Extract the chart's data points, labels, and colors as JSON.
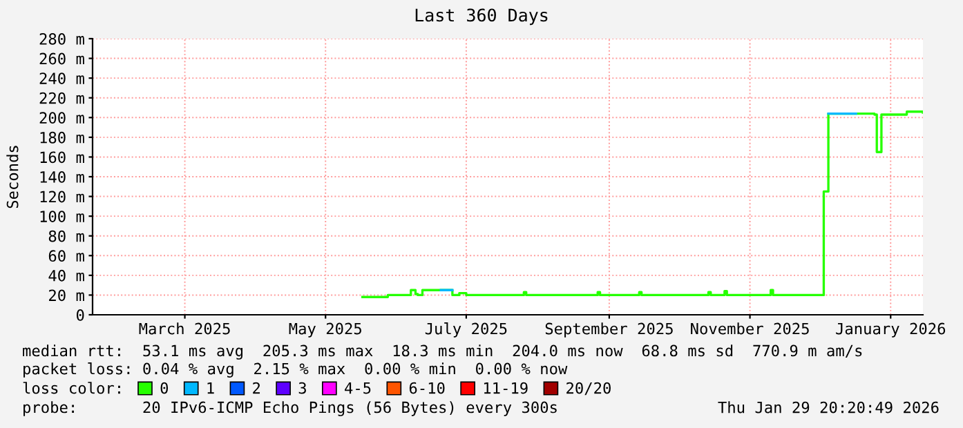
{
  "chart_data": {
    "type": "step",
    "title": "Last 360 Days",
    "ylabel": "Seconds",
    "legend_title": "loss color:",
    "xlim": [
      "2025-02-03",
      "2026-01-29"
    ],
    "xticks": [
      {
        "value": "2025-03-15",
        "label": "March 2025"
      },
      {
        "value": "2025-05-15",
        "label": "May 2025"
      },
      {
        "value": "2025-07-15",
        "label": "July 2025"
      },
      {
        "value": "2025-09-15",
        "label": "September 2025"
      },
      {
        "value": "2025-11-15",
        "label": "November 2025"
      },
      {
        "value": "2026-01-15",
        "label": "January 2026"
      }
    ],
    "ylim": [
      0,
      280
    ],
    "yticks": [
      0,
      {
        "value": 20,
        "label": "20 m"
      },
      {
        "value": 40,
        "label": "40 m"
      },
      {
        "value": 60,
        "label": "60 m"
      },
      {
        "value": 80,
        "label": "80 m"
      },
      {
        "value": 100,
        "label": "100 m"
      },
      {
        "value": 120,
        "label": "120 m"
      },
      {
        "value": 140,
        "label": "140 m"
      },
      {
        "value": 160,
        "label": "160 m"
      },
      {
        "value": 180,
        "label": "180 m"
      },
      {
        "value": 200,
        "label": "200 m"
      },
      {
        "value": 220,
        "label": "220 m"
      },
      {
        "value": 240,
        "label": "240 m"
      },
      {
        "value": 260,
        "label": "260 m"
      },
      {
        "value": 280,
        "label": "280 m"
      }
    ],
    "grid": true,
    "legend": "bottom",
    "series": [
      {
        "name": "0",
        "color": "#26ff00",
        "x": [
          "2025-05-31",
          "2025-06-09",
          "2025-06-11",
          "2025-06-20",
          "2025-06-21",
          "2025-06-23",
          "2025-06-24",
          "2025-06-26",
          "2025-07-08",
          "2025-07-09",
          "2025-07-12",
          "2025-07-15",
          "2025-08-08",
          "2025-08-09",
          "2025-08-10",
          "2025-09-09",
          "2025-09-10",
          "2025-09-11",
          "2025-09-27",
          "2025-09-28",
          "2025-09-29",
          "2025-10-27",
          "2025-10-28",
          "2025-10-29",
          "2025-11-03",
          "2025-11-04",
          "2025-11-05",
          "2025-11-23",
          "2025-11-24",
          "2025-11-25",
          "2025-12-16",
          "2025-12-17",
          "2025-12-18",
          "2025-12-19",
          "2026-01-08",
          "2026-01-09",
          "2026-01-10",
          "2026-01-11",
          "2026-01-21",
          "2026-01-22",
          "2026-01-29"
        ],
        "values": [
          18,
          18,
          20,
          20,
          25,
          21,
          20,
          25,
          25,
          20,
          22,
          20,
          20,
          23,
          20,
          20,
          23,
          20,
          20,
          23,
          20,
          20,
          23,
          20,
          20,
          24,
          20,
          20,
          25,
          20,
          20,
          125,
          125,
          204,
          203,
          165,
          165,
          203,
          203,
          206,
          205
        ]
      },
      {
        "name": "1",
        "color": "#00b8ff",
        "x": [
          "2025-07-04",
          "2025-07-08",
          "2025-07-09",
          "2025-12-19",
          "2025-12-31"
        ],
        "values": [
          25,
          25,
          null,
          204,
          204
        ]
      },
      {
        "name": "2",
        "color": "#0059ff"
      },
      {
        "name": "3",
        "color": "#5e00ff"
      },
      {
        "name": "4-5",
        "color": "#ff00ff"
      },
      {
        "name": "6-10",
        "color": "#ff5500"
      },
      {
        "name": "11-19",
        "color": "#ff0000"
      },
      {
        "name": "20/20",
        "color": "#a10000"
      }
    ],
    "annotations": [
      "median rtt:  53.1 ms avg  205.3 ms max  18.3 ms min  204.0 ms now  68.8 ms sd  770.9 m am/s",
      "packet loss: 0.04 % avg  2.15 % max  0.00 % min  0.00 % now",
      "probe:       20 IPv6-ICMP Echo Pings (56 Bytes) every 300s",
      "Thu Jan 29 20:20:49 2026"
    ]
  }
}
